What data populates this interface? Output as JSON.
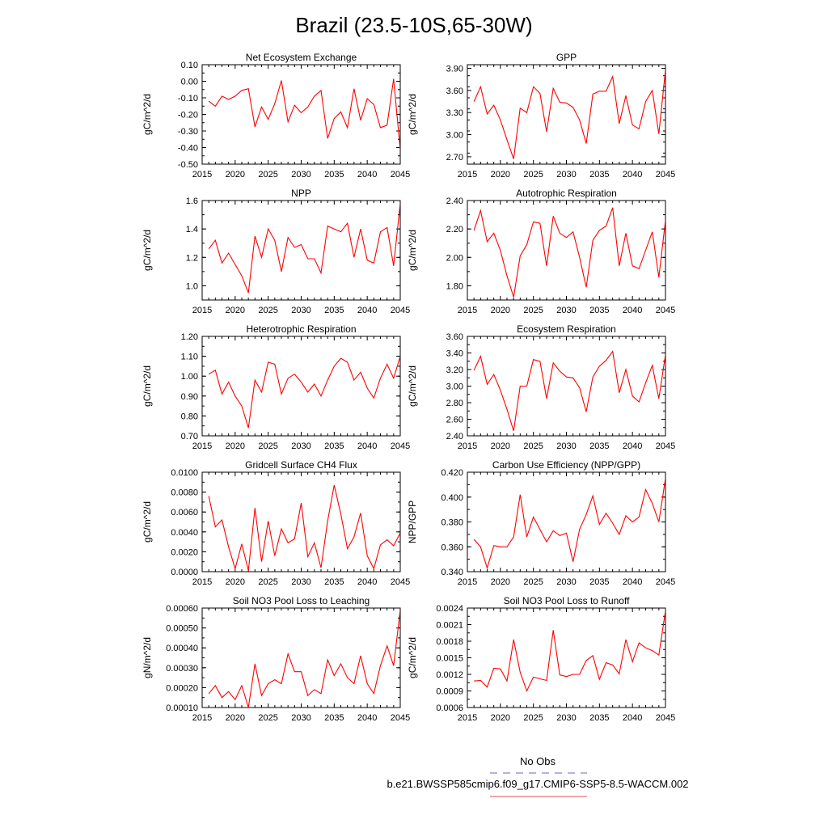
{
  "page": {
    "title": "Brazil (23.5-10S,65-30W)"
  },
  "legend": {
    "obs_label": "No Obs",
    "obs_color": "#6666cc",
    "case_label": "b.e21.BWSSP585cmip6.f09_g17.CMIP6-SSP5-8.5-WACCM.002",
    "case_color": "#e05050"
  },
  "line_color": "#ff0000",
  "chart_data": [
    {
      "type": "line",
      "title": "Net Ecosystem Exchange",
      "ylabel": "gC/m^2/d",
      "xlim": [
        2015,
        2045
      ],
      "ylim": [
        -0.5,
        0.1
      ],
      "xticks": [
        2015,
        2020,
        2025,
        2030,
        2035,
        2040,
        2045
      ],
      "xticklabels": [
        "2015",
        "2020",
        "2025",
        "2030",
        "2035",
        "2040",
        "2045"
      ],
      "yticks": [
        -0.5,
        -0.4,
        -0.3,
        -0.2,
        -0.1,
        0.0,
        0.1
      ],
      "yticklabels": [
        "-0.50",
        "-0.40",
        "-0.30",
        "-0.20",
        "-0.10",
        "0.00",
        "0.10"
      ],
      "x": [
        2016,
        2017,
        2018,
        2019,
        2020,
        2021,
        2022,
        2023,
        2024,
        2025,
        2026,
        2027,
        2028,
        2029,
        2030,
        2031,
        2032,
        2033,
        2034,
        2035,
        2036,
        2037,
        2038,
        2039,
        2040,
        2041,
        2042,
        2043,
        2044,
        2045
      ],
      "y": [
        -0.12,
        -0.15,
        -0.09,
        -0.11,
        -0.09,
        -0.055,
        -0.045,
        -0.275,
        -0.155,
        -0.23,
        -0.135,
        0.005,
        -0.245,
        -0.145,
        -0.19,
        -0.155,
        -0.09,
        -0.055,
        -0.345,
        -0.225,
        -0.185,
        -0.28,
        -0.045,
        -0.235,
        -0.105,
        -0.14,
        -0.28,
        -0.265,
        0.015,
        -0.415
      ]
    },
    {
      "type": "line",
      "title": "GPP",
      "ylabel": "gC/m^2/d",
      "xlim": [
        2015,
        2045
      ],
      "ylim": [
        2.6,
        3.95
      ],
      "xticks": [
        2015,
        2020,
        2025,
        2030,
        2035,
        2040,
        2045
      ],
      "xticklabels": [
        "2015",
        "2020",
        "2025",
        "2030",
        "2035",
        "2040",
        "2045"
      ],
      "yticks": [
        2.7,
        3.0,
        3.3,
        3.6,
        3.9
      ],
      "yticklabels": [
        "2.70",
        "3.00",
        "3.30",
        "3.60",
        "3.90"
      ],
      "x": [
        2016,
        2017,
        2018,
        2019,
        2020,
        2021,
        2022,
        2023,
        2024,
        2025,
        2026,
        2027,
        2028,
        2029,
        2030,
        2031,
        2032,
        2033,
        2034,
        2035,
        2036,
        2037,
        2038,
        2039,
        2040,
        2041,
        2042,
        2043,
        2044,
        2045
      ],
      "y": [
        3.45,
        3.65,
        3.28,
        3.4,
        3.2,
        2.93,
        2.67,
        3.36,
        3.3,
        3.65,
        3.56,
        3.04,
        3.63,
        3.44,
        3.43,
        3.37,
        3.2,
        2.88,
        3.55,
        3.59,
        3.59,
        3.79,
        3.15,
        3.53,
        3.13,
        3.08,
        3.45,
        3.6,
        3.01,
        3.88
      ]
    },
    {
      "type": "line",
      "title": "NPP",
      "ylabel": "gC/m^2/d",
      "xlim": [
        2015,
        2045
      ],
      "ylim": [
        0.9,
        1.6
      ],
      "xticks": [
        2015,
        2020,
        2025,
        2030,
        2035,
        2040,
        2045
      ],
      "xticklabels": [
        "2015",
        "2020",
        "2025",
        "2030",
        "2035",
        "2040",
        "2045"
      ],
      "yticks": [
        1.0,
        1.2,
        1.4,
        1.6
      ],
      "yticklabels": [
        "1.0",
        "1.2",
        "1.4",
        "1.6"
      ],
      "x": [
        2016,
        2017,
        2018,
        2019,
        2020,
        2021,
        2022,
        2023,
        2024,
        2025,
        2026,
        2027,
        2028,
        2029,
        2030,
        2031,
        2032,
        2033,
        2034,
        2035,
        2036,
        2037,
        2038,
        2039,
        2040,
        2041,
        2042,
        2043,
        2044,
        2045
      ],
      "y": [
        1.26,
        1.32,
        1.16,
        1.23,
        1.15,
        1.07,
        0.95,
        1.35,
        1.2,
        1.4,
        1.32,
        1.1,
        1.34,
        1.27,
        1.29,
        1.19,
        1.19,
        1.09,
        1.42,
        1.4,
        1.38,
        1.44,
        1.2,
        1.4,
        1.18,
        1.16,
        1.38,
        1.41,
        1.14,
        1.58
      ]
    },
    {
      "type": "line",
      "title": "Autotrophic Respiration",
      "ylabel": "gC/m^2/d",
      "xlim": [
        2015,
        2045
      ],
      "ylim": [
        1.7,
        2.4
      ],
      "xticks": [
        2015,
        2020,
        2025,
        2030,
        2035,
        2040,
        2045
      ],
      "xticklabels": [
        "2015",
        "2020",
        "2025",
        "2030",
        "2035",
        "2040",
        "2045"
      ],
      "yticks": [
        1.8,
        2.0,
        2.2,
        2.4
      ],
      "yticklabels": [
        "1.80",
        "2.00",
        "2.20",
        "2.40"
      ],
      "x": [
        2016,
        2017,
        2018,
        2019,
        2020,
        2021,
        2022,
        2023,
        2024,
        2025,
        2026,
        2027,
        2028,
        2029,
        2030,
        2031,
        2032,
        2033,
        2034,
        2035,
        2036,
        2037,
        2038,
        2039,
        2040,
        2041,
        2042,
        2043,
        2044,
        2045
      ],
      "y": [
        2.19,
        2.33,
        2.11,
        2.17,
        2.05,
        1.87,
        1.72,
        2.01,
        2.09,
        2.25,
        2.24,
        1.94,
        2.29,
        2.17,
        2.14,
        2.18,
        2.0,
        1.79,
        2.12,
        2.19,
        2.22,
        2.35,
        1.94,
        2.17,
        1.94,
        1.92,
        2.05,
        2.18,
        1.86,
        2.26
      ]
    },
    {
      "type": "line",
      "title": "Heterotrophic Respiration",
      "ylabel": "gC/m^2/d",
      "xlim": [
        2015,
        2045
      ],
      "ylim": [
        0.7,
        1.2
      ],
      "xticks": [
        2015,
        2020,
        2025,
        2030,
        2035,
        2040,
        2045
      ],
      "xticklabels": [
        "2015",
        "2020",
        "2025",
        "2030",
        "2035",
        "2040",
        "2045"
      ],
      "yticks": [
        0.7,
        0.8,
        0.9,
        1.0,
        1.1,
        1.2
      ],
      "yticklabels": [
        "0.70",
        "0.80",
        "0.90",
        "1.00",
        "1.10",
        "1.20"
      ],
      "x": [
        2016,
        2017,
        2018,
        2019,
        2020,
        2021,
        2022,
        2023,
        2024,
        2025,
        2026,
        2027,
        2028,
        2029,
        2030,
        2031,
        2032,
        2033,
        2034,
        2035,
        2036,
        2037,
        2038,
        2039,
        2040,
        2041,
        2042,
        2043,
        2044,
        2045
      ],
      "y": [
        1.01,
        1.03,
        0.91,
        0.97,
        0.9,
        0.85,
        0.74,
        0.98,
        0.92,
        1.07,
        1.06,
        0.91,
        0.99,
        1.01,
        0.97,
        0.92,
        0.96,
        0.9,
        0.98,
        1.05,
        1.09,
        1.07,
        0.98,
        1.02,
        0.94,
        0.89,
        0.99,
        1.06,
        0.99,
        1.1
      ]
    },
    {
      "type": "line",
      "title": "Ecosystem Respiration",
      "ylabel": "gC/m^2/d",
      "xlim": [
        2015,
        2045
      ],
      "ylim": [
        2.4,
        3.6
      ],
      "xticks": [
        2015,
        2020,
        2025,
        2030,
        2035,
        2040,
        2045
      ],
      "xticklabels": [
        "2015",
        "2020",
        "2025",
        "2030",
        "2035",
        "2040",
        "2045"
      ],
      "yticks": [
        2.4,
        2.6,
        2.8,
        3.0,
        3.2,
        3.4,
        3.6
      ],
      "yticklabels": [
        "2.40",
        "2.60",
        "2.80",
        "3.00",
        "3.20",
        "3.40",
        "3.60"
      ],
      "x": [
        2016,
        2017,
        2018,
        2019,
        2020,
        2021,
        2022,
        2023,
        2024,
        2025,
        2026,
        2027,
        2028,
        2029,
        2030,
        2031,
        2032,
        2033,
        2034,
        2035,
        2036,
        2037,
        2038,
        2039,
        2040,
        2041,
        2042,
        2043,
        2044,
        2045
      ],
      "y": [
        3.19,
        3.36,
        3.02,
        3.14,
        2.95,
        2.72,
        2.46,
        3.0,
        3.0,
        3.32,
        3.3,
        2.85,
        3.28,
        3.18,
        3.11,
        3.1,
        2.98,
        2.69,
        3.11,
        3.24,
        3.31,
        3.42,
        2.92,
        3.2,
        2.88,
        2.81,
        3.04,
        3.25,
        2.85,
        3.38
      ]
    },
    {
      "type": "line",
      "title": "Gridcell Surface CH4 Flux",
      "ylabel": "gC/m^2/d",
      "xlim": [
        2015,
        2045
      ],
      "ylim": [
        0.0,
        0.01
      ],
      "xticks": [
        2015,
        2020,
        2025,
        2030,
        2035,
        2040,
        2045
      ],
      "xticklabels": [
        "2015",
        "2020",
        "2025",
        "2030",
        "2035",
        "2040",
        "2045"
      ],
      "yticks": [
        0.0,
        0.002,
        0.004,
        0.006,
        0.008,
        0.01
      ],
      "yticklabels": [
        "0.0000",
        "0.0020",
        "0.0040",
        "0.0060",
        "0.0080",
        "0.0100"
      ],
      "x": [
        2016,
        2017,
        2018,
        2019,
        2020,
        2021,
        2022,
        2023,
        2024,
        2025,
        2026,
        2027,
        2028,
        2029,
        2030,
        2031,
        2032,
        2033,
        2034,
        2035,
        2036,
        2037,
        2038,
        2039,
        2040,
        2041,
        2042,
        2043,
        2044,
        2045
      ],
      "y": [
        0.0076,
        0.0045,
        0.0052,
        0.0025,
        0.0003,
        0.0028,
        0.0001,
        0.0064,
        0.001,
        0.0051,
        0.0016,
        0.0043,
        0.0029,
        0.0033,
        0.0069,
        0.0015,
        0.0029,
        0.0004,
        0.0051,
        0.0087,
        0.0058,
        0.0023,
        0.0035,
        0.0059,
        0.0016,
        0.0003,
        0.0027,
        0.0032,
        0.0026,
        0.0039
      ]
    },
    {
      "type": "line",
      "title": "Carbon Use Efficiency (NPP/GPP)",
      "ylabel": "NPP/GPP",
      "xlim": [
        2015,
        2045
      ],
      "ylim": [
        0.34,
        0.42
      ],
      "xticks": [
        2015,
        2020,
        2025,
        2030,
        2035,
        2040,
        2045
      ],
      "xticklabels": [
        "2015",
        "2020",
        "2025",
        "2030",
        "2035",
        "2040",
        "2045"
      ],
      "yticks": [
        0.34,
        0.36,
        0.38,
        0.4,
        0.42
      ],
      "yticklabels": [
        "0.340",
        "0.360",
        "0.380",
        "0.400",
        "0.420"
      ],
      "x": [
        2016,
        2017,
        2018,
        2019,
        2020,
        2021,
        2022,
        2023,
        2024,
        2025,
        2026,
        2027,
        2028,
        2029,
        2030,
        2031,
        2032,
        2033,
        2034,
        2035,
        2036,
        2037,
        2038,
        2039,
        2040,
        2041,
        2042,
        2043,
        2044,
        2045
      ],
      "y": [
        0.366,
        0.36,
        0.343,
        0.361,
        0.36,
        0.36,
        0.368,
        0.402,
        0.368,
        0.384,
        0.374,
        0.364,
        0.373,
        0.369,
        0.371,
        0.348,
        0.374,
        0.386,
        0.401,
        0.378,
        0.387,
        0.379,
        0.37,
        0.385,
        0.38,
        0.384,
        0.406,
        0.395,
        0.38,
        0.415
      ]
    },
    {
      "type": "line",
      "title": "Soil NO3 Pool Loss to Leaching",
      "ylabel": "gN/m^2/d",
      "xlim": [
        2015,
        2045
      ],
      "ylim": [
        0.0001,
        0.0006
      ],
      "xticks": [
        2015,
        2020,
        2025,
        2030,
        2035,
        2040,
        2045
      ],
      "xticklabels": [
        "2015",
        "2020",
        "2025",
        "2030",
        "2035",
        "2040",
        "2045"
      ],
      "yticks": [
        0.0001,
        0.0002,
        0.0003,
        0.0004,
        0.0005,
        0.0006
      ],
      "yticklabels": [
        "0.00010",
        "0.00020",
        "0.00030",
        "0.00040",
        "0.00050",
        "0.00060"
      ],
      "x": [
        2016,
        2017,
        2018,
        2019,
        2020,
        2021,
        2022,
        2023,
        2024,
        2025,
        2026,
        2027,
        2028,
        2029,
        2030,
        2031,
        2032,
        2033,
        2034,
        2035,
        2036,
        2037,
        2038,
        2039,
        2040,
        2041,
        2042,
        2043,
        2044,
        2045
      ],
      "y": [
        0.00017,
        0.00021,
        0.00015,
        0.00018,
        0.00014,
        0.00021,
        0.0001,
        0.00032,
        0.00016,
        0.00022,
        0.00024,
        0.00022,
        0.00037,
        0.00028,
        0.00028,
        0.00016,
        0.00019,
        0.00017,
        0.00034,
        0.00026,
        0.00032,
        0.00025,
        0.00022,
        0.00036,
        0.00022,
        0.00017,
        0.00031,
        0.00041,
        0.00031,
        0.00059
      ]
    },
    {
      "type": "line",
      "title": "Soil NO3 Pool Loss to Runoff",
      "ylabel": "gC/m^2/d",
      "xlim": [
        2015,
        2045
      ],
      "ylim": [
        0.0006,
        0.0024
      ],
      "xticks": [
        2015,
        2020,
        2025,
        2030,
        2035,
        2040,
        2045
      ],
      "xticklabels": [
        "2015",
        "2020",
        "2025",
        "2030",
        "2035",
        "2040",
        "2045"
      ],
      "yticks": [
        0.0006,
        0.0009,
        0.0012,
        0.0015,
        0.0018,
        0.0021,
        0.0024
      ],
      "yticklabels": [
        "0.0006",
        "0.0009",
        "0.0012",
        "0.0015",
        "0.0018",
        "0.0021",
        "0.0024"
      ],
      "x": [
        2016,
        2017,
        2018,
        2019,
        2020,
        2021,
        2022,
        2023,
        2024,
        2025,
        2026,
        2027,
        2028,
        2029,
        2030,
        2031,
        2032,
        2033,
        2034,
        2035,
        2036,
        2037,
        2038,
        2039,
        2040,
        2041,
        2042,
        2043,
        2044,
        2045
      ],
      "y": [
        0.00108,
        0.00109,
        0.00097,
        0.00131,
        0.0013,
        0.00108,
        0.00183,
        0.00124,
        0.0009,
        0.00115,
        0.00112,
        0.00109,
        0.002,
        0.00119,
        0.00116,
        0.0012,
        0.0012,
        0.00145,
        0.00154,
        0.00111,
        0.00141,
        0.00137,
        0.00121,
        0.00183,
        0.00143,
        0.00177,
        0.00168,
        0.00163,
        0.00155,
        0.00235
      ]
    }
  ]
}
